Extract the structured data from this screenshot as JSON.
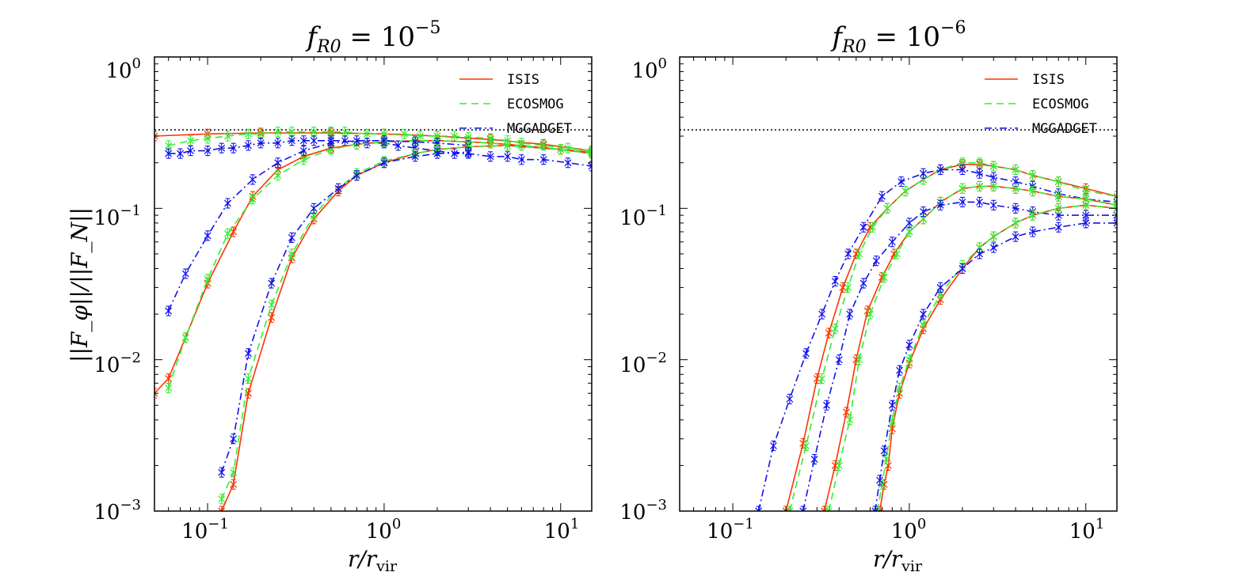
{
  "figure": {
    "ylabel": "||F_φ||/||F_N||",
    "legend_entries": [
      "ISIS",
      "ECOSMOG",
      "MGGADGET"
    ]
  },
  "colors": {
    "ISIS": "#ff3300",
    "ECOSMOG": "#33ee33",
    "MGGADGET": "#1111ee",
    "reference": "#000000"
  },
  "chart_data": [
    {
      "type": "line",
      "panel": "left",
      "title": "f_R0 = 10^-5",
      "title_base": "f",
      "title_sub": "R0",
      "title_eq": " = 10",
      "title_exp": "−5",
      "xlabel": "r/r_vir",
      "xlabel_main": "r/r",
      "xlabel_sub": "vir",
      "xscale": "log",
      "yscale": "log",
      "xlim": [
        0.05,
        15
      ],
      "ylim": [
        0.001,
        1.0
      ],
      "xtick_labels": [
        {
          "base": "10",
          "exp": "−1"
        },
        {
          "base": "10",
          "exp": "0"
        },
        {
          "base": "10",
          "exp": "1"
        }
      ],
      "ytick_labels": [
        {
          "base": "10",
          "exp": "0"
        },
        {
          "base": "10",
          "exp": "−1"
        },
        {
          "base": "10",
          "exp": "−2"
        },
        {
          "base": "10",
          "exp": "−3"
        }
      ],
      "reference_line": 0.33,
      "legend_position": "top-right",
      "series": [
        {
          "name": "ISIS",
          "halo": 1,
          "x": [
            0.05,
            0.1,
            0.2,
            0.5,
            1,
            2,
            4,
            8,
            15
          ],
          "y": [
            0.3,
            0.31,
            0.315,
            0.315,
            0.31,
            0.3,
            0.285,
            0.265,
            0.24
          ]
        },
        {
          "name": "ECOSMOG",
          "halo": 1,
          "x": [
            0.06,
            0.08,
            0.1,
            0.13,
            0.17,
            0.2,
            0.25,
            0.3,
            0.4,
            0.5,
            0.6,
            0.8,
            1,
            1.3,
            1.6,
            2,
            2.5,
            3,
            4,
            5,
            6,
            8,
            11,
            15
          ],
          "y": [
            0.26,
            0.28,
            0.29,
            0.3,
            0.31,
            0.31,
            0.32,
            0.32,
            0.32,
            0.32,
            0.32,
            0.31,
            0.31,
            0.31,
            0.3,
            0.3,
            0.3,
            0.295,
            0.29,
            0.28,
            0.27,
            0.26,
            0.25,
            0.24
          ]
        },
        {
          "name": "MGGADGET",
          "halo": 1,
          "x": [
            0.06,
            0.07,
            0.08,
            0.1,
            0.12,
            0.14,
            0.17,
            0.2,
            0.25,
            0.3,
            0.35,
            0.4,
            0.5,
            0.6,
            0.8,
            1,
            1.2,
            1.5,
            2,
            2.5,
            3,
            4,
            5,
            6,
            8,
            11,
            15
          ],
          "y": [
            0.23,
            0.23,
            0.24,
            0.24,
            0.25,
            0.25,
            0.26,
            0.27,
            0.27,
            0.28,
            0.28,
            0.28,
            0.28,
            0.28,
            0.27,
            0.27,
            0.26,
            0.25,
            0.24,
            0.23,
            0.23,
            0.22,
            0.22,
            0.21,
            0.21,
            0.2,
            0.19
          ]
        },
        {
          "name": "ISIS",
          "halo": 2,
          "x": [
            0.05,
            0.06,
            0.075,
            0.1,
            0.14,
            0.18,
            0.25,
            0.35,
            0.5,
            0.7,
            1,
            1.5,
            2,
            3,
            4,
            6,
            10,
            15
          ],
          "y": [
            0.006,
            0.0075,
            0.014,
            0.032,
            0.07,
            0.12,
            0.18,
            0.22,
            0.25,
            0.265,
            0.275,
            0.28,
            0.28,
            0.275,
            0.27,
            0.26,
            0.245,
            0.23
          ]
        },
        {
          "name": "ECOSMOG",
          "halo": 2,
          "x": [
            0.06,
            0.075,
            0.1,
            0.13,
            0.18,
            0.25,
            0.35,
            0.5,
            0.7,
            1,
            1.5,
            2,
            3,
            4,
            6,
            10,
            15
          ],
          "y": [
            0.0065,
            0.014,
            0.034,
            0.068,
            0.115,
            0.165,
            0.21,
            0.245,
            0.265,
            0.275,
            0.28,
            0.28,
            0.275,
            0.27,
            0.26,
            0.245,
            0.23
          ]
        },
        {
          "name": "MGGADGET",
          "halo": 2,
          "x": [
            0.06,
            0.075,
            0.1,
            0.13,
            0.18,
            0.25,
            0.35,
            0.5,
            0.7,
            1,
            1.5,
            2,
            3
          ],
          "y": [
            0.021,
            0.037,
            0.066,
            0.108,
            0.155,
            0.2,
            0.24,
            0.27,
            0.28,
            0.28,
            0.275,
            0.27,
            0.26
          ]
        },
        {
          "name": "ISIS",
          "halo": 3,
          "x": [
            0.12,
            0.14,
            0.17,
            0.23,
            0.3,
            0.4,
            0.55,
            0.7,
            1,
            1.5,
            2,
            3,
            5,
            10,
            15
          ],
          "y": [
            0.001,
            0.0015,
            0.006,
            0.019,
            0.047,
            0.085,
            0.13,
            0.165,
            0.2,
            0.23,
            0.245,
            0.255,
            0.26,
            0.245,
            0.235
          ]
        },
        {
          "name": "ECOSMOG",
          "halo": 3,
          "x": [
            0.12,
            0.14,
            0.17,
            0.23,
            0.3,
            0.4,
            0.55,
            0.7,
            1,
            1.5,
            2,
            3,
            5,
            10,
            15
          ],
          "y": [
            0.0012,
            0.0018,
            0.0075,
            0.023,
            0.05,
            0.09,
            0.135,
            0.17,
            0.205,
            0.23,
            0.245,
            0.255,
            0.26,
            0.245,
            0.235
          ]
        },
        {
          "name": "MGGADGET",
          "halo": 3,
          "x": [
            0.12,
            0.14,
            0.17,
            0.23,
            0.3,
            0.4,
            0.55,
            0.7,
            1,
            1.5,
            2,
            3
          ],
          "y": [
            0.0018,
            0.003,
            0.011,
            0.032,
            0.064,
            0.1,
            0.135,
            0.165,
            0.2,
            0.22,
            0.23,
            0.235
          ]
        }
      ]
    },
    {
      "type": "line",
      "panel": "right",
      "title": "f_R0 = 10^-6",
      "title_base": "f",
      "title_sub": "R0",
      "title_eq": " = 10",
      "title_exp": "−6",
      "xlabel": "r/r_vir",
      "xlabel_main": "r/r",
      "xlabel_sub": "vir",
      "xscale": "log",
      "yscale": "log",
      "xlim": [
        0.05,
        15
      ],
      "ylim": [
        0.001,
        1.0
      ],
      "xtick_labels": [
        {
          "base": "10",
          "exp": "−1"
        },
        {
          "base": "10",
          "exp": "0"
        },
        {
          "base": "10",
          "exp": "1"
        }
      ],
      "ytick_labels": [
        {
          "base": "10",
          "exp": "0"
        },
        {
          "base": "10",
          "exp": "−1"
        },
        {
          "base": "10",
          "exp": "−2"
        },
        {
          "base": "10",
          "exp": "−3"
        }
      ],
      "reference_line": 0.33,
      "legend_position": "top-right",
      "series": [
        {
          "name": "ISIS",
          "halo": 1,
          "x": [
            0.2,
            0.25,
            0.3,
            0.35,
            0.42,
            0.5,
            0.6,
            0.75,
            0.95,
            1.2,
            1.5,
            2,
            2.5,
            3,
            4,
            5,
            7,
            10,
            15
          ],
          "y": [
            0.001,
            0.0028,
            0.0075,
            0.015,
            0.03,
            0.05,
            0.075,
            0.1,
            0.13,
            0.155,
            0.18,
            0.195,
            0.195,
            0.19,
            0.18,
            0.165,
            0.15,
            0.135,
            0.12
          ]
        },
        {
          "name": "ECOSMOG",
          "halo": 1,
          "x": [
            0.21,
            0.26,
            0.32,
            0.38,
            0.45,
            0.52,
            0.62,
            0.75,
            0.95,
            1.2,
            1.5,
            2,
            2.5,
            3,
            4,
            5,
            7,
            10,
            15
          ],
          "y": [
            0.001,
            0.0027,
            0.0075,
            0.016,
            0.03,
            0.05,
            0.075,
            0.1,
            0.13,
            0.155,
            0.18,
            0.2,
            0.2,
            0.19,
            0.18,
            0.165,
            0.15,
            0.13,
            0.12
          ]
        },
        {
          "name": "MGGADGET",
          "halo": 1,
          "x": [
            0.14,
            0.17,
            0.21,
            0.26,
            0.32,
            0.38,
            0.45,
            0.55,
            0.7,
            0.9,
            1.2,
            1.5,
            2,
            2.5,
            3,
            4,
            5,
            7,
            10,
            15
          ],
          "y": [
            0.001,
            0.0027,
            0.0055,
            0.011,
            0.02,
            0.033,
            0.05,
            0.075,
            0.12,
            0.15,
            0.17,
            0.18,
            0.18,
            0.17,
            0.16,
            0.15,
            0.14,
            0.125,
            0.115,
            0.11
          ]
        },
        {
          "name": "ISIS",
          "halo": 2,
          "x": [
            0.33,
            0.38,
            0.44,
            0.5,
            0.58,
            0.7,
            0.82,
            1,
            1.2,
            1.5,
            2,
            2.5,
            3,
            4,
            5,
            7,
            10,
            15
          ],
          "y": [
            0.001,
            0.002,
            0.0045,
            0.01,
            0.021,
            0.035,
            0.05,
            0.07,
            0.085,
            0.11,
            0.135,
            0.14,
            0.14,
            0.135,
            0.13,
            0.12,
            0.115,
            0.105
          ]
        },
        {
          "name": "ECOSMOG",
          "halo": 2,
          "x": [
            0.35,
            0.4,
            0.46,
            0.52,
            0.6,
            0.72,
            0.85,
            1,
            1.2,
            1.5,
            2,
            2.5,
            3,
            4,
            5,
            7,
            10,
            15
          ],
          "y": [
            0.001,
            0.002,
            0.004,
            0.01,
            0.02,
            0.035,
            0.05,
            0.07,
            0.085,
            0.11,
            0.135,
            0.14,
            0.14,
            0.135,
            0.13,
            0.12,
            0.115,
            0.105
          ]
        },
        {
          "name": "MGGADGET",
          "halo": 2,
          "x": [
            0.25,
            0.29,
            0.34,
            0.4,
            0.46,
            0.55,
            0.65,
            0.8,
            1,
            1.2,
            1.5,
            2,
            2.5,
            3,
            4,
            5,
            7,
            10,
            15
          ],
          "y": [
            0.001,
            0.0022,
            0.005,
            0.01,
            0.02,
            0.032,
            0.045,
            0.06,
            0.08,
            0.095,
            0.105,
            0.11,
            0.11,
            0.105,
            0.1,
            0.095,
            0.09,
            0.09,
            0.09
          ]
        },
        {
          "name": "ISIS",
          "halo": 3,
          "x": [
            0.68,
            0.72,
            0.76,
            0.8,
            0.88,
            1,
            1.2,
            1.5,
            2,
            2.5,
            3,
            4,
            5,
            7,
            10,
            15
          ],
          "y": [
            0.001,
            0.0015,
            0.002,
            0.0035,
            0.006,
            0.0095,
            0.016,
            0.025,
            0.04,
            0.055,
            0.065,
            0.08,
            0.09,
            0.1,
            0.105,
            0.1
          ]
        },
        {
          "name": "ECOSMOG",
          "halo": 3,
          "x": [
            0.66,
            0.7,
            0.74,
            0.8,
            0.88,
            1,
            1.2,
            1.5,
            2,
            2.5,
            3,
            4,
            5,
            7,
            10,
            15
          ],
          "y": [
            0.001,
            0.0015,
            0.0022,
            0.004,
            0.0065,
            0.01,
            0.017,
            0.027,
            0.042,
            0.055,
            0.065,
            0.08,
            0.09,
            0.1,
            0.105,
            0.1
          ]
        },
        {
          "name": "MGGADGET",
          "halo": 3,
          "x": [
            0.64,
            0.68,
            0.72,
            0.8,
            0.88,
            1,
            1.2,
            1.5,
            2,
            2.5,
            3,
            4,
            5,
            7,
            10,
            15
          ],
          "y": [
            0.001,
            0.0016,
            0.0025,
            0.005,
            0.0085,
            0.0125,
            0.02,
            0.03,
            0.04,
            0.05,
            0.055,
            0.065,
            0.07,
            0.075,
            0.08,
            0.08
          ]
        }
      ]
    }
  ]
}
